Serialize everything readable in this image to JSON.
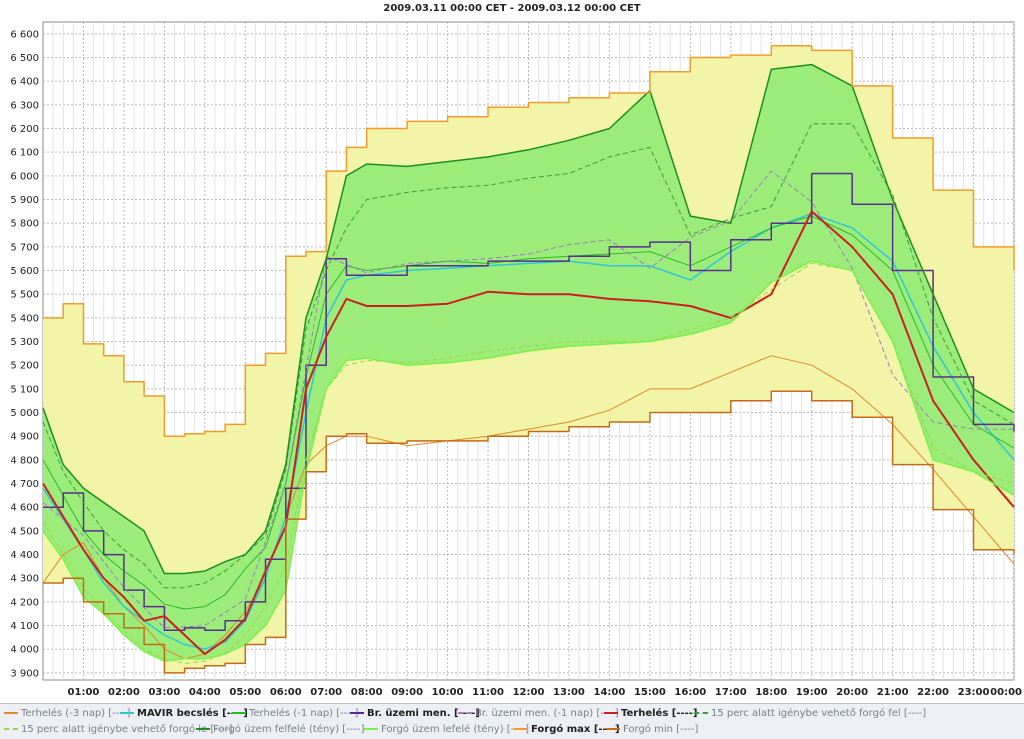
{
  "chart_data": {
    "type": "line",
    "title": "2009.03.11 00:00 CET - 2009.03.12 00:00 CET",
    "xlabel": "",
    "ylabel": "",
    "x_ticks": [
      "01:00",
      "02:00",
      "03:00",
      "04:00",
      "05:00",
      "06:00",
      "07:00",
      "08:00",
      "09:00",
      "10:00",
      "11:00",
      "12:00",
      "13:00",
      "14:00",
      "15:00",
      "16:00",
      "17:00",
      "18:00",
      "19:00",
      "20:00",
      "21:00",
      "22:00",
      "23:00",
      "00:00"
    ],
    "y_ticks": [
      "3 900",
      "4 000",
      "4 100",
      "4 200",
      "4 300",
      "4 400",
      "4 500",
      "4 600",
      "4 700",
      "4 800",
      "4 900",
      "5 000",
      "5 100",
      "5 200",
      "5 300",
      "5 400",
      "5 500",
      "5 600",
      "5 700",
      "5 800",
      "5 900",
      "6 000",
      "6 100",
      "6 200",
      "6 300",
      "6 400",
      "6 500",
      "6 600"
    ],
    "ylim": [
      3870,
      6650
    ],
    "xlim": [
      0,
      24
    ],
    "grid": true,
    "legend_position": "bottom",
    "series": [
      {
        "name": "Terhelés (-3 nap) [----]",
        "color": "#e0882a",
        "width": 1,
        "style": "solid",
        "x": [
          0,
          0.5,
          1,
          1.5,
          2,
          2.5,
          3,
          3.5,
          4,
          4.5,
          5,
          5.5,
          6,
          6.5,
          7,
          7.5,
          8,
          9,
          10,
          11,
          12,
          13,
          14,
          15,
          16,
          17,
          18,
          19,
          20,
          21,
          22,
          23,
          24
        ],
        "y": [
          4280,
          4400,
          4450,
          4300,
          4180,
          4100,
          4000,
          3960,
          3980,
          4060,
          4160,
          4300,
          4560,
          4780,
          4860,
          4900,
          4900,
          4860,
          4880,
          4900,
          4930,
          4960,
          5010,
          5100,
          5100,
          5170,
          5240,
          5200,
          5100,
          4950,
          4760,
          4560,
          4360
        ]
      },
      {
        "name": "MAVIR becslés [----]",
        "color": "#2fc7d6",
        "width": 1.5,
        "style": "solid",
        "x": [
          0,
          0.5,
          1,
          1.5,
          2,
          2.5,
          3,
          3.5,
          4,
          4.5,
          5,
          5.5,
          6,
          6.5,
          7,
          7.5,
          8,
          9,
          10,
          11,
          12,
          13,
          14,
          15,
          16,
          17,
          18,
          19,
          20,
          21,
          22,
          23,
          24
        ],
        "y": [
          4680,
          4550,
          4420,
          4280,
          4180,
          4120,
          4060,
          4020,
          4000,
          4030,
          4120,
          4300,
          4560,
          5000,
          5400,
          5560,
          5580,
          5600,
          5610,
          5620,
          5630,
          5640,
          5620,
          5620,
          5560,
          5680,
          5780,
          5840,
          5780,
          5640,
          5280,
          5000,
          4800
        ]
      },
      {
        "name": "Terhelés (-1 nap) [----]",
        "color": "#2db82d",
        "width": 1,
        "style": "solid",
        "x": [
          0,
          0.5,
          1,
          1.5,
          2,
          2.5,
          3,
          3.5,
          4,
          4.5,
          5,
          5.5,
          6,
          6.5,
          7,
          7.5,
          8,
          9,
          10,
          11,
          12,
          13,
          14,
          15,
          16,
          17,
          18,
          19,
          20,
          21,
          22,
          23,
          24
        ],
        "y": [
          4800,
          4650,
          4500,
          4400,
          4330,
          4270,
          4190,
          4170,
          4180,
          4230,
          4340,
          4430,
          4700,
          5150,
          5500,
          5620,
          5600,
          5620,
          5640,
          5630,
          5650,
          5660,
          5670,
          5680,
          5620,
          5700,
          5780,
          5830,
          5750,
          5600,
          5200,
          4950,
          4850
        ]
      },
      {
        "name": "Br. üzemi men. [----]",
        "color": "#5a2d8f",
        "width": 1.5,
        "style": "step",
        "x": [
          0,
          0.5,
          1,
          1.5,
          2,
          2.5,
          3,
          3.5,
          4,
          4.5,
          5,
          5.5,
          6,
          6.5,
          7,
          7.5,
          8,
          9,
          10,
          11,
          12,
          13,
          14,
          15,
          16,
          17,
          18,
          19,
          20,
          21,
          22,
          23,
          24
        ],
        "y": [
          4600,
          4660,
          4500,
          4400,
          4250,
          4180,
          4080,
          4090,
          4080,
          4120,
          4200,
          4380,
          4680,
          5200,
          5650,
          5580,
          5580,
          5620,
          5620,
          5640,
          5640,
          5660,
          5700,
          5720,
          5600,
          5730,
          5800,
          6010,
          5880,
          5600,
          5150,
          4950,
          4920
        ]
      },
      {
        "name": "Br. üzemi men. (-1 nap) [----]",
        "color": "#a07cc8",
        "width": 1,
        "style": "dashed",
        "x": [
          0,
          1,
          2,
          3,
          4,
          5,
          6,
          7,
          8,
          9,
          10,
          11,
          12,
          13,
          14,
          15,
          16,
          17,
          18,
          19,
          20,
          21,
          22,
          23,
          24
        ],
        "y": [
          4620,
          4480,
          4260,
          4090,
          4100,
          4210,
          4700,
          5660,
          5590,
          5630,
          5640,
          5650,
          5670,
          5710,
          5730,
          5610,
          5740,
          5810,
          6020,
          5890,
          5610,
          5160,
          4960,
          4930,
          4930
        ]
      },
      {
        "name": "Terhelés [----]",
        "color": "#cc1f1f",
        "width": 2,
        "style": "solid",
        "x": [
          0,
          0.5,
          1,
          1.5,
          2,
          2.5,
          3,
          3.5,
          4,
          4.5,
          5,
          5.5,
          6,
          6.5,
          7,
          7.5,
          8,
          9,
          10,
          11,
          12,
          13,
          14,
          15,
          16,
          17,
          18,
          19,
          20,
          21,
          22,
          23,
          24
        ],
        "y": [
          4700,
          4560,
          4420,
          4300,
          4220,
          4120,
          4140,
          4060,
          3980,
          4040,
          4130,
          4330,
          4520,
          5100,
          5320,
          5480,
          5450,
          5450,
          5460,
          5510,
          5500,
          5500,
          5480,
          5470,
          5450,
          5400,
          5500,
          5850,
          5700,
          5500,
          5050,
          4800,
          4600
        ]
      },
      {
        "name": "15 perc alatt igénybe vehető forgó fel [----]",
        "color": "#3a9e3a",
        "width": 1,
        "style": "dashed",
        "x": [
          0,
          0.5,
          1,
          1.5,
          2,
          2.5,
          3,
          3.5,
          4,
          4.5,
          5,
          5.5,
          6,
          6.5,
          7,
          7.5,
          8,
          9,
          10,
          11,
          12,
          13,
          14,
          15,
          16,
          17,
          18,
          19,
          20,
          21,
          22,
          23,
          24
        ],
        "y": [
          4960,
          4750,
          4620,
          4500,
          4420,
          4360,
          4260,
          4260,
          4280,
          4330,
          4400,
          4480,
          4760,
          5350,
          5600,
          5780,
          5900,
          5930,
          5950,
          5960,
          5990,
          6010,
          6080,
          6120,
          5750,
          5820,
          5870,
          6220,
          6220,
          5920,
          5400,
          5050,
          4950
        ]
      },
      {
        "name": "15 perc alatt igénybe vehető forgó le [----]",
        "color": "#9ad64a",
        "width": 1,
        "style": "dashed",
        "x": [
          0,
          0.5,
          1,
          1.5,
          2,
          2.5,
          3,
          3.5,
          4,
          4.5,
          5,
          5.5,
          6,
          6.5,
          7,
          7.5,
          8,
          9,
          10,
          11,
          12,
          13,
          14,
          15,
          16,
          17,
          18,
          19,
          20,
          21,
          22,
          23,
          24
        ],
        "y": [
          4540,
          4400,
          4260,
          4160,
          4080,
          4000,
          3960,
          3940,
          3950,
          3980,
          4060,
          4180,
          4350,
          4800,
          5100,
          5200,
          5220,
          5210,
          5230,
          5260,
          5280,
          5300,
          5300,
          5300,
          5350,
          5400,
          5520,
          5630,
          5600,
          5300,
          4850,
          4750,
          4700
        ]
      },
      {
        "name": "Forgó üzem felfelé (tény) [----]",
        "color": "#1e8f1e",
        "width": 1.5,
        "style": "solid",
        "x": [
          0,
          0.5,
          1,
          1.5,
          2,
          2.5,
          3,
          3.5,
          4,
          4.5,
          5,
          5.5,
          6,
          6.5,
          7,
          7.5,
          8,
          9,
          10,
          11,
          12,
          13,
          14,
          15,
          16,
          17,
          18,
          19,
          20,
          21,
          22,
          23,
          24
        ],
        "y": [
          5020,
          4780,
          4680,
          4620,
          4560,
          4500,
          4320,
          4320,
          4330,
          4370,
          4400,
          4500,
          4780,
          5400,
          5650,
          6000,
          6050,
          6040,
          6060,
          6080,
          6110,
          6150,
          6200,
          6360,
          5830,
          5800,
          6450,
          6470,
          6380,
          5900,
          5500,
          5100,
          5000
        ]
      },
      {
        "name": "Forgó üzem lefelé (tény) [----]",
        "color": "#7cf04a",
        "width": 1.5,
        "style": "solid",
        "x": [
          0,
          0.5,
          1,
          1.5,
          2,
          2.5,
          3,
          3.5,
          4,
          4.5,
          5,
          5.5,
          6,
          6.5,
          7,
          7.5,
          8,
          9,
          10,
          11,
          12,
          13,
          14,
          15,
          16,
          17,
          18,
          19,
          20,
          21,
          22,
          23,
          24
        ],
        "y": [
          4500,
          4380,
          4220,
          4150,
          4060,
          3990,
          3950,
          3960,
          3960,
          3980,
          4020,
          4100,
          4250,
          4750,
          5100,
          5220,
          5230,
          5200,
          5210,
          5230,
          5260,
          5280,
          5290,
          5300,
          5330,
          5380,
          5550,
          5640,
          5600,
          5300,
          4800,
          4750,
          4650
        ]
      },
      {
        "name": "Forgó max [----]",
        "color": "#f39b2a",
        "width": 1.5,
        "style": "step",
        "x": [
          0,
          0.5,
          1,
          1.5,
          2,
          2.5,
          3,
          3.5,
          4,
          4.5,
          5,
          5.5,
          6,
          6.5,
          7,
          7.5,
          8,
          9,
          10,
          11,
          12,
          13,
          14,
          15,
          16,
          17,
          18,
          19,
          20,
          21,
          22,
          23,
          24
        ],
        "y": [
          5400,
          5460,
          5290,
          5240,
          5130,
          5070,
          4900,
          4910,
          4920,
          4950,
          5200,
          5250,
          5660,
          5680,
          6020,
          6120,
          6200,
          6230,
          6250,
          6290,
          6310,
          6330,
          6350,
          6440,
          6500,
          6510,
          6550,
          6530,
          6380,
          6160,
          5940,
          5700,
          5600
        ]
      },
      {
        "name": "Forgó min [----]",
        "color": "#c76a18",
        "width": 1.5,
        "style": "step",
        "x": [
          0,
          0.5,
          1,
          1.5,
          2,
          2.5,
          3,
          3.5,
          4,
          4.5,
          5,
          5.5,
          6,
          6.5,
          7,
          7.5,
          8,
          9,
          10,
          11,
          12,
          13,
          14,
          15,
          16,
          17,
          18,
          19,
          20,
          21,
          22,
          23,
          24
        ],
        "y": [
          4280,
          4300,
          4200,
          4150,
          4090,
          4020,
          3900,
          3920,
          3930,
          3940,
          4020,
          4050,
          4550,
          4750,
          4900,
          4910,
          4870,
          4880,
          4880,
          4900,
          4920,
          4940,
          4960,
          5000,
          5000,
          5050,
          5090,
          5050,
          4980,
          4780,
          4590,
          4420,
          4400
        ]
      }
    ]
  },
  "legend_labels": {
    "l1": "Terhelés (-3 nap) [----]",
    "l2": "MAVIR becslés [----]",
    "l3": "Terhelés (-1 nap) [----]",
    "l4": "Br. üzemi men. [----]",
    "l5": "Br. üzemi men. (-1 nap) [----]",
    "l6": "Terhelés [----]",
    "l7": "15 perc alatt igénybe vehető forgó fel [----]",
    "l8": "15 perc alatt igénybe vehető forgó le [----]",
    "l9": "Forgó üzem felfelé (tény) [----]",
    "l10": "Forgó üzem lefelé (tény) [----]",
    "l11": "Forgó max [----]",
    "l12": "Forgó min [----]"
  },
  "colors": {
    "band_outer": "#f2f5a8",
    "band_inner": "#9cec7a",
    "grid": "#b9b9b9",
    "legend_bg": "#eceff4"
  }
}
